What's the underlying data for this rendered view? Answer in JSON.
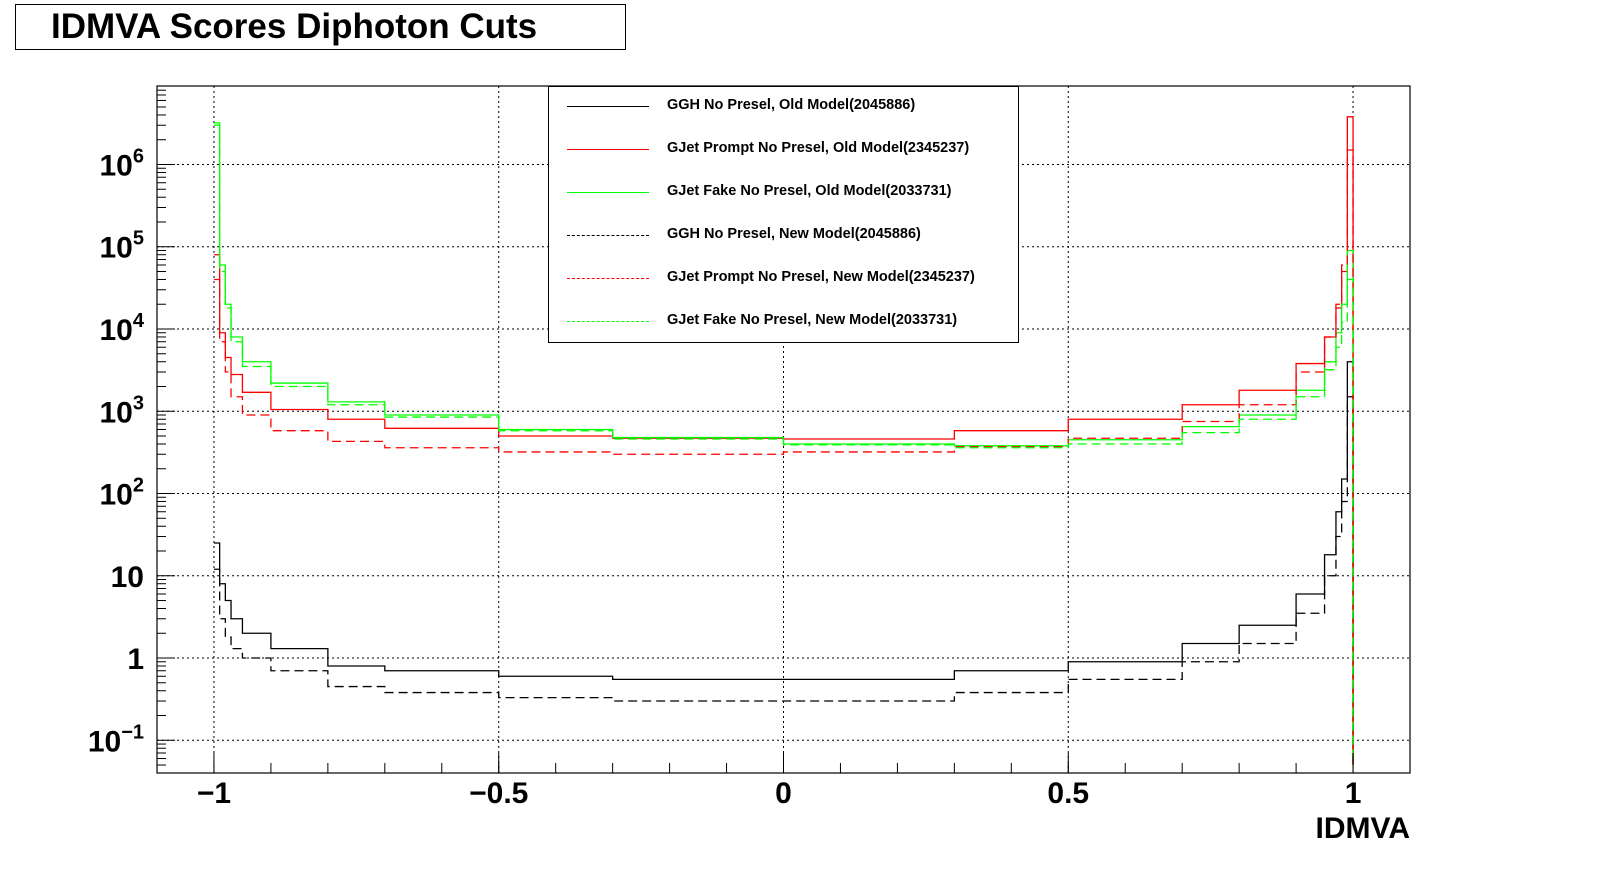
{
  "chart_data": {
    "type": "line",
    "title": "IDMVA Scores Diphoton Cuts",
    "xlabel": "IDMVA",
    "ylabel": "",
    "xlim": [
      -1.1,
      1.1
    ],
    "ylim": [
      0.04,
      9000000
    ],
    "yscale": "log",
    "grid": true,
    "legend_position": "top-center",
    "x_ticks": [
      -1,
      -0.5,
      0,
      0.5,
      1
    ],
    "x_tick_labels": [
      "−1",
      "−0.5",
      "0",
      "0.5",
      "1"
    ],
    "y_ticks": [
      0.1,
      1,
      10,
      100,
      1000,
      10000,
      100000,
      1000000
    ],
    "y_tick_labels": [
      {
        "base": "10",
        "exp": "−1"
      },
      {
        "base": "1",
        "exp": ""
      },
      {
        "base": "10",
        "exp": ""
      },
      {
        "base": "10",
        "exp": "2"
      },
      {
        "base": "10",
        "exp": "3"
      },
      {
        "base": "10",
        "exp": "4"
      },
      {
        "base": "10",
        "exp": "5"
      },
      {
        "base": "10",
        "exp": "6"
      }
    ],
    "series": [
      {
        "name": "GGH No Presel, Old Model(2045886)",
        "color": "#000000",
        "style": "solid",
        "x": [
          -1.0,
          -0.99,
          -0.98,
          -0.97,
          -0.95,
          -0.9,
          -0.8,
          -0.7,
          -0.5,
          -0.3,
          0.0,
          0.3,
          0.5,
          0.7,
          0.8,
          0.9,
          0.95,
          0.97,
          0.98,
          0.99,
          1.0
        ],
        "y": [
          25,
          8,
          5,
          3,
          2,
          1.3,
          0.8,
          0.7,
          0.6,
          0.55,
          0.55,
          0.7,
          0.9,
          1.5,
          2.5,
          6,
          18,
          60,
          150,
          4000,
          0.05
        ]
      },
      {
        "name": "GJet Prompt No Presel, Old Model(2345237)",
        "color": "#ff0000",
        "style": "solid",
        "x": [
          -1.0,
          -0.99,
          -0.98,
          -0.97,
          -0.95,
          -0.9,
          -0.8,
          -0.7,
          -0.5,
          -0.3,
          0.0,
          0.3,
          0.5,
          0.7,
          0.8,
          0.9,
          0.95,
          0.97,
          0.98,
          0.99,
          1.0
        ],
        "y": [
          80000,
          9000,
          4500,
          2800,
          1700,
          1050,
          800,
          620,
          500,
          470,
          460,
          580,
          800,
          1200,
          1800,
          3800,
          8000,
          18000,
          50000,
          3800000,
          0.05
        ]
      },
      {
        "name": "GJet Fake No Presel, Old Model(2033731)",
        "color": "#00ff00",
        "style": "solid",
        "x": [
          -1.0,
          -0.99,
          -0.98,
          -0.97,
          -0.95,
          -0.9,
          -0.8,
          -0.7,
          -0.5,
          -0.3,
          0.0,
          0.3,
          0.5,
          0.7,
          0.8,
          0.9,
          0.95,
          0.97,
          0.98,
          0.99,
          1.0
        ],
        "y": [
          3200000,
          60000,
          20000,
          8000,
          4000,
          2200,
          1300,
          900,
          600,
          480,
          400,
          380,
          450,
          650,
          900,
          1800,
          4000,
          9000,
          20000,
          90000,
          0.05
        ]
      },
      {
        "name": "GGH No Presel, New Model(2045886)",
        "color": "#000000",
        "style": "dashed",
        "x": [
          -1.0,
          -0.99,
          -0.98,
          -0.97,
          -0.95,
          -0.9,
          -0.8,
          -0.7,
          -0.5,
          -0.3,
          0.0,
          0.3,
          0.5,
          0.7,
          0.8,
          0.9,
          0.95,
          0.97,
          0.98,
          0.99,
          1.0
        ],
        "y": [
          12,
          3,
          1.8,
          1.3,
          1,
          0.7,
          0.45,
          0.38,
          0.33,
          0.3,
          0.3,
          0.38,
          0.55,
          0.9,
          1.5,
          3.5,
          10,
          30,
          80,
          1500,
          0.05
        ]
      },
      {
        "name": "GJet Prompt No Presel, New Model(2345237)",
        "color": "#ff0000",
        "style": "dashed",
        "x": [
          -1.0,
          -0.99,
          -0.98,
          -0.97,
          -0.95,
          -0.9,
          -0.8,
          -0.7,
          -0.5,
          -0.3,
          0.0,
          0.3,
          0.5,
          0.7,
          0.8,
          0.9,
          0.95,
          0.97,
          0.98,
          0.99,
          1.0
        ],
        "y": [
          40000,
          7000,
          3000,
          1500,
          900,
          580,
          430,
          360,
          320,
          300,
          320,
          370,
          470,
          750,
          1200,
          3000,
          8000,
          20000,
          60000,
          1500000,
          0.05
        ]
      },
      {
        "name": "GJet Fake No Presel, New Model(2033731)",
        "color": "#00ff00",
        "style": "dashed",
        "x": [
          -1.0,
          -0.99,
          -0.98,
          -0.97,
          -0.95,
          -0.9,
          -0.8,
          -0.7,
          -0.5,
          -0.3,
          0.0,
          0.3,
          0.5,
          0.7,
          0.8,
          0.9,
          0.95,
          0.97,
          0.98,
          0.99,
          1.0
        ],
        "y": [
          3000000,
          50000,
          18000,
          7000,
          3500,
          2000,
          1200,
          850,
          580,
          460,
          390,
          360,
          400,
          550,
          800,
          1500,
          3200,
          6000,
          12000,
          40000,
          0.05
        ]
      }
    ]
  }
}
